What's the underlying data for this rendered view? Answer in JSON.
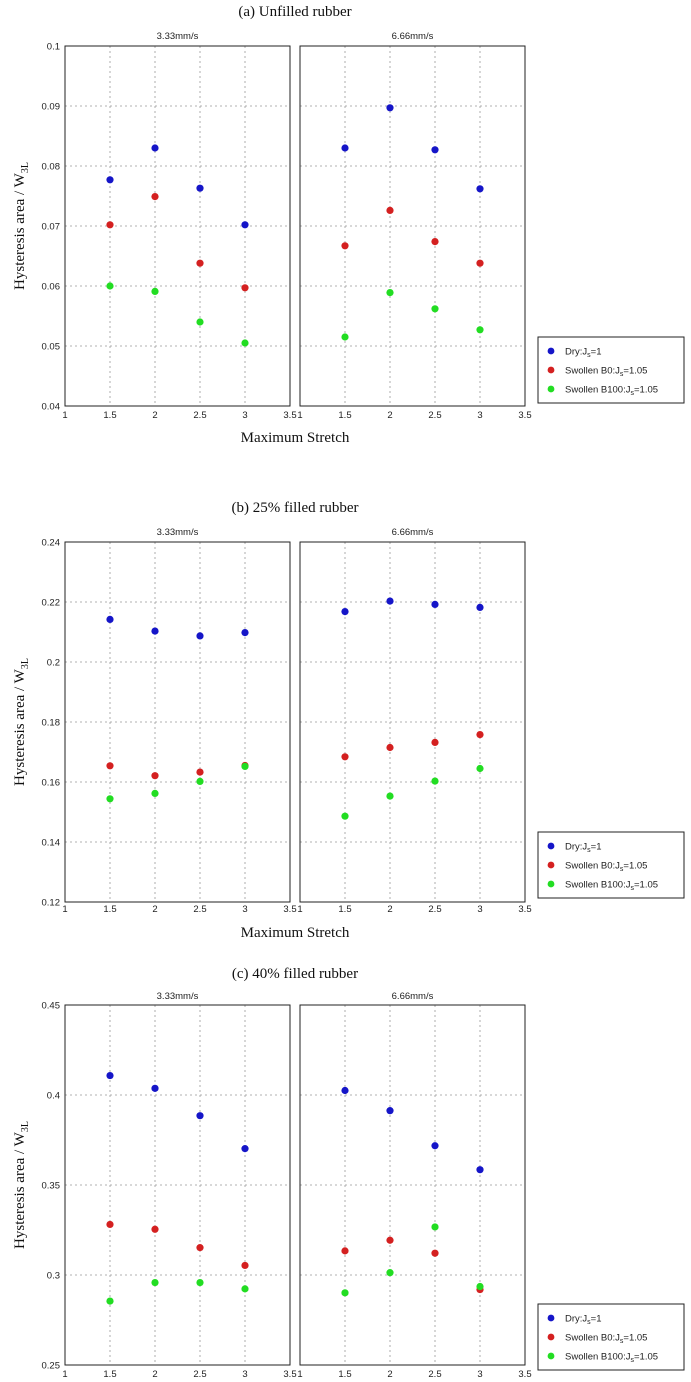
{
  "chart_data": [
    {
      "type": "scatter",
      "title": "(a) Unfilled rubber",
      "ylabel": "Hysteresis area / W",
      "ylabel_sub": "3L",
      "xlabel": "Maximum Stretch",
      "xlim": [
        1,
        3.5
      ],
      "ylim": [
        0.04,
        0.1
      ],
      "xticks": [
        "1",
        "1.5",
        "2",
        "2.5",
        "3",
        "3.5"
      ],
      "yticks": [
        "0.04",
        "0.05",
        "0.06",
        "0.07",
        "0.08",
        "0.09",
        "0.1"
      ],
      "grid": true,
      "legend": {
        "placement": "right-bottom",
        "entries": [
          {
            "prefix": "Dry:J",
            "sub": "s",
            "suffix": "=1",
            "color": "#1515c8"
          },
          {
            "prefix": "Swollen B0:J",
            "sub": "s",
            "suffix": "=1.05",
            "color": "#d42020"
          },
          {
            "prefix": "Swollen B100:J",
            "sub": "s",
            "suffix": "=1.05",
            "color": "#22dd22"
          }
        ]
      },
      "panels": [
        {
          "subtitle": "3.33mm/s",
          "x": [
            1.5,
            2,
            2.5,
            3
          ],
          "series": [
            {
              "values": [
                0.0777,
                0.083,
                0.0763,
                0.0702
              ],
              "color": "#1515c8"
            },
            {
              "values": [
                0.0702,
                0.0749,
                0.0638,
                0.0597
              ],
              "color": "#d42020"
            },
            {
              "values": [
                0.06,
                0.0591,
                0.054,
                0.0505
              ],
              "color": "#22dd22"
            }
          ]
        },
        {
          "subtitle": "6.66mm/s",
          "x": [
            1.5,
            2,
            2.5,
            3
          ],
          "series": [
            {
              "values": [
                0.083,
                0.0897,
                0.0827,
                0.0762
              ],
              "color": "#1515c8"
            },
            {
              "values": [
                0.0667,
                0.0726,
                0.0674,
                0.0638
              ],
              "color": "#d42020"
            },
            {
              "values": [
                0.0515,
                0.0589,
                0.0562,
                0.0527
              ],
              "color": "#22dd22"
            }
          ]
        }
      ]
    },
    {
      "type": "scatter",
      "title": "(b) 25% filled rubber",
      "ylabel": "Hysteresis area / W",
      "ylabel_sub": "3L",
      "xlabel": "Maximum Stretch",
      "xlim": [
        1,
        3.5
      ],
      "ylim": [
        0.12,
        0.24
      ],
      "xticks": [
        "1",
        "1.5",
        "2",
        "2.5",
        "3",
        "3.5"
      ],
      "yticks": [
        "0.12",
        "0.14",
        "0.16",
        "0.18",
        "0.2",
        "0.22",
        "0.24"
      ],
      "grid": true,
      "legend": {
        "placement": "right-bottom",
        "entries": [
          {
            "prefix": "Dry:J",
            "sub": "s",
            "suffix": "=1",
            "color": "#1515c8"
          },
          {
            "prefix": "Swollen B0:J",
            "sub": "s",
            "suffix": "=1.05",
            "color": "#d42020"
          },
          {
            "prefix": "Swollen B100:J",
            "sub": "s",
            "suffix": "=1.05",
            "color": "#22dd22"
          }
        ]
      },
      "panels": [
        {
          "subtitle": "3.33mm/s",
          "x": [
            1.5,
            2,
            2.5,
            3
          ],
          "series": [
            {
              "values": [
                0.2142,
                0.2103,
                0.2087,
                0.2098
              ],
              "color": "#1515c8"
            },
            {
              "values": [
                0.1654,
                0.1621,
                0.1633,
                0.1655
              ],
              "color": "#d42020"
            },
            {
              "values": [
                0.1544,
                0.1562,
                0.1602,
                0.1652
              ],
              "color": "#22dd22"
            }
          ]
        },
        {
          "subtitle": "6.66mm/s",
          "x": [
            1.5,
            2,
            2.5,
            3
          ],
          "series": [
            {
              "values": [
                0.2168,
                0.2203,
                0.2192,
                0.2182
              ],
              "color": "#1515c8"
            },
            {
              "values": [
                0.1684,
                0.1715,
                0.1732,
                0.1758
              ],
              "color": "#d42020"
            },
            {
              "values": [
                0.1486,
                0.1553,
                0.1603,
                0.1645
              ],
              "color": "#22dd22"
            }
          ]
        }
      ]
    },
    {
      "type": "scatter",
      "title": "(c) 40% filled rubber",
      "ylabel": "Hysteresis area / W",
      "ylabel_sub": "3L",
      "xlabel": "Maximum Stretch",
      "xlim": [
        1,
        3.5
      ],
      "ylim": [
        0.25,
        0.45
      ],
      "xticks": [
        "1",
        "1.5",
        "2",
        "2.5",
        "3",
        "3.5"
      ],
      "yticks": [
        "0.25",
        "0.3",
        "0.35",
        "0.4",
        "0.45"
      ],
      "grid": true,
      "legend": {
        "placement": "right-bottom",
        "entries": [
          {
            "prefix": "Dry:J",
            "sub": "s",
            "suffix": "=1",
            "color": "#1515c8"
          },
          {
            "prefix": "Swollen B0:J",
            "sub": "s",
            "suffix": "=1.05",
            "color": "#d42020"
          },
          {
            "prefix": "Swollen B100:J",
            "sub": "s",
            "suffix": "=1.05",
            "color": "#22dd22"
          }
        ]
      },
      "panels": [
        {
          "subtitle": "3.33mm/s",
          "x": [
            1.5,
            2,
            2.5,
            3
          ],
          "series": [
            {
              "values": [
                0.4108,
                0.4037,
                0.3885,
                0.3702
              ],
              "color": "#1515c8"
            },
            {
              "values": [
                0.3281,
                0.3254,
                0.3152,
                0.3053
              ],
              "color": "#d42020"
            },
            {
              "values": [
                0.2855,
                0.2958,
                0.2958,
                0.2923
              ],
              "color": "#22dd22"
            }
          ]
        },
        {
          "subtitle": "6.66mm/s",
          "x": [
            1.5,
            2,
            2.5,
            3
          ],
          "series": [
            {
              "values": [
                0.4025,
                0.3913,
                0.3718,
                0.3585
              ],
              "color": "#1515c8"
            },
            {
              "values": [
                0.3134,
                0.3193,
                0.3121,
                0.2919
              ],
              "color": "#d42020"
            },
            {
              "values": [
                0.2901,
                0.3013,
                0.3267,
                0.2936
              ],
              "color": "#22dd22"
            }
          ]
        }
      ]
    }
  ]
}
